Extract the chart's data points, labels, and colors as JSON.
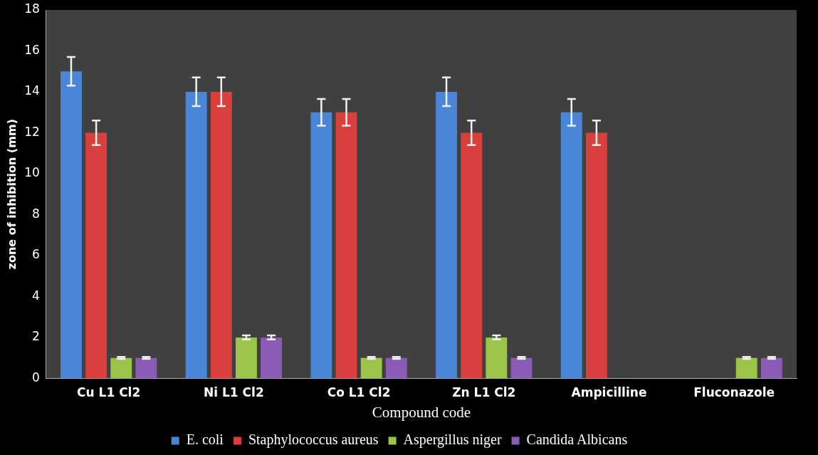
{
  "chart_data": {
    "type": "bar",
    "xlabel": "Compound code",
    "ylabel": "zone of inhibition (mm)",
    "categories": [
      "Cu L1 Cl2",
      "Ni L1 Cl2",
      "Co L1 Cl2",
      "Zn L1 Cl2",
      "Ampicilline",
      "Fluconazole"
    ],
    "series": [
      {
        "name": "E. coli",
        "color": "#4a86d8",
        "values": [
          15,
          14,
          13,
          14,
          13,
          null
        ],
        "errors": [
          0.7,
          0.7,
          0.65,
          0.7,
          0.65,
          null
        ]
      },
      {
        "name": "Staphylococcus aureus",
        "color": "#d9403d",
        "values": [
          12,
          14,
          13,
          12,
          12,
          null
        ],
        "errors": [
          0.6,
          0.7,
          0.65,
          0.6,
          0.6,
          null
        ]
      },
      {
        "name": "Aspergillus niger",
        "color": "#9bc548",
        "values": [
          1,
          2,
          1,
          2,
          null,
          1
        ],
        "errors": [
          0.05,
          0.1,
          0.05,
          0.1,
          null,
          0.05
        ]
      },
      {
        "name": "Candida Albicans",
        "color": "#8a5bb5",
        "values": [
          1,
          2,
          1,
          1,
          null,
          1
        ],
        "errors": [
          0.05,
          0.1,
          0.05,
          0.05,
          null,
          0.05
        ]
      }
    ],
    "ylim": [
      0,
      18
    ],
    "yticks": [
      0,
      2,
      4,
      6,
      8,
      10,
      12,
      14,
      16,
      18
    ],
    "grid": false,
    "legend": "bottom"
  }
}
